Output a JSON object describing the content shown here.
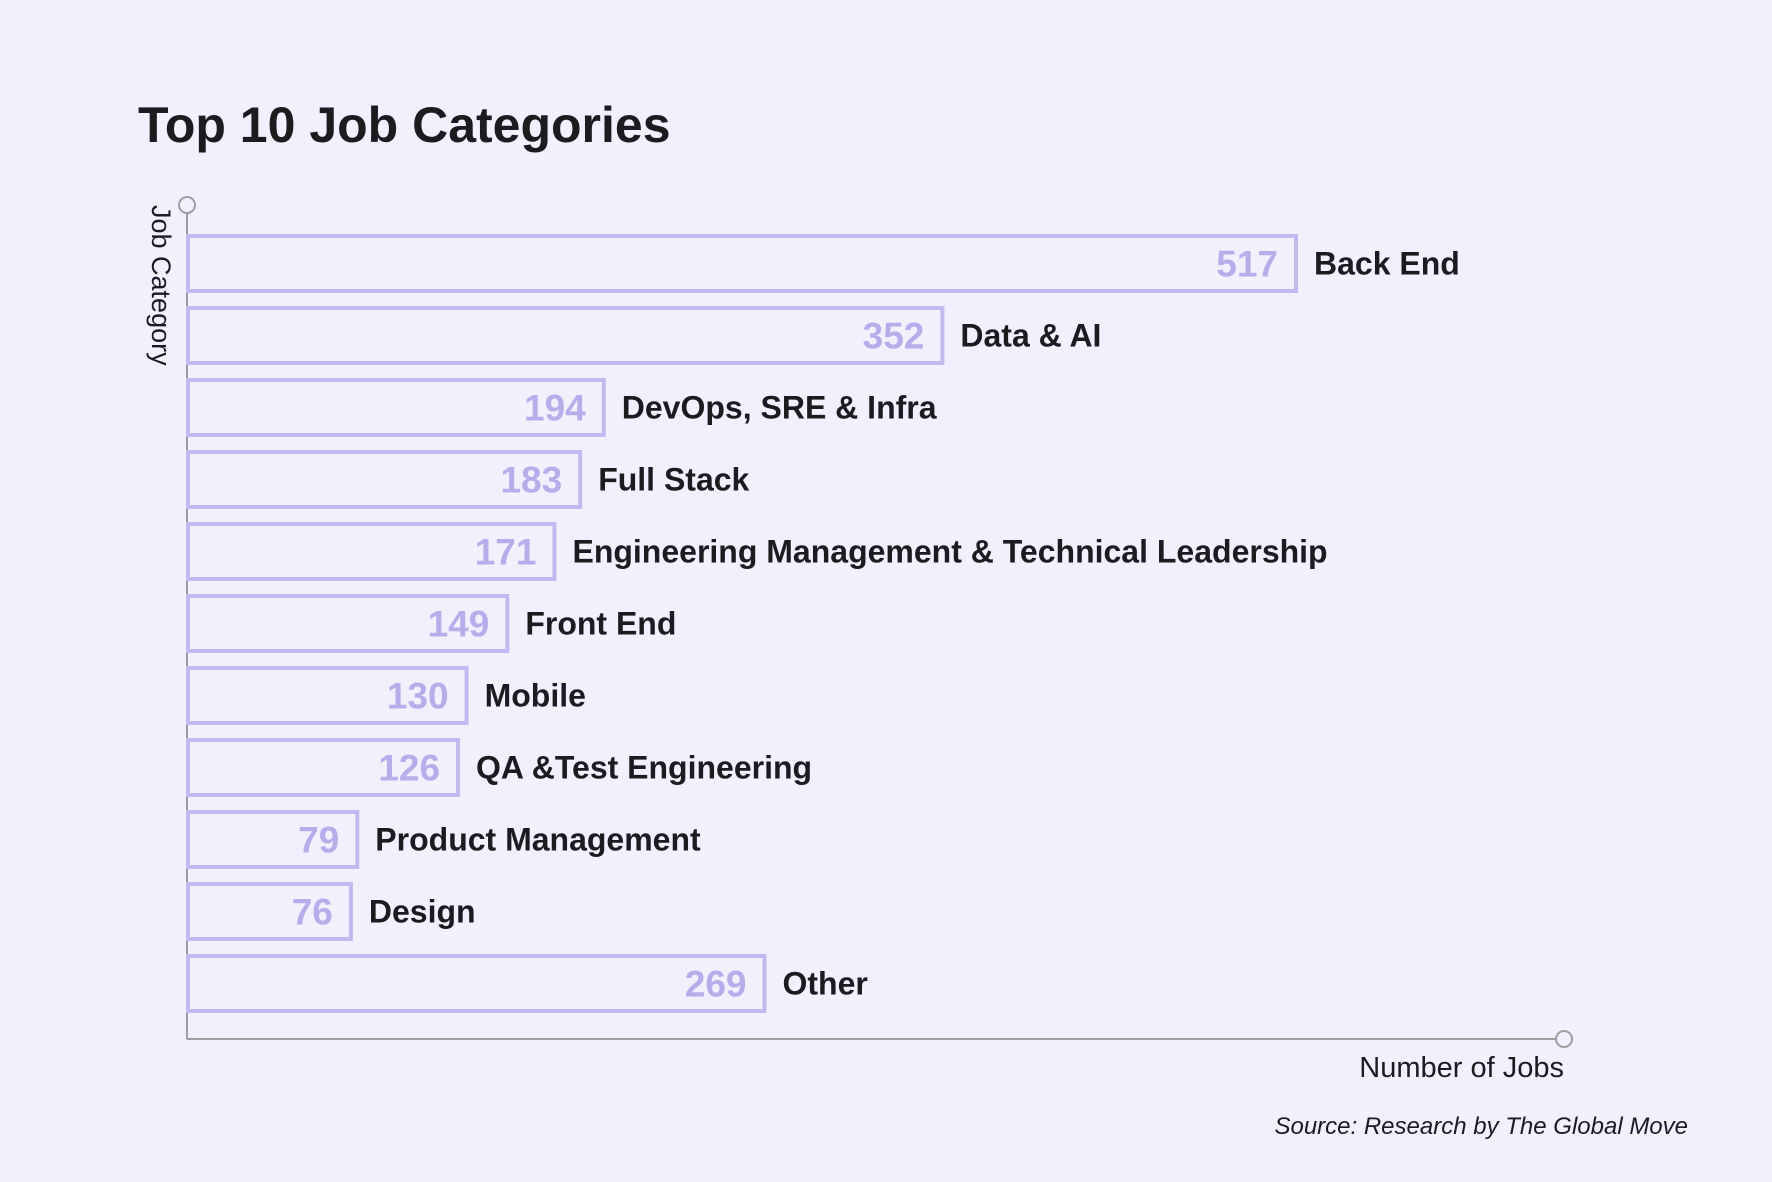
{
  "chart_data": {
    "type": "bar",
    "orientation": "horizontal",
    "title": "Top 10 Job Categories",
    "xlabel": "Number of Jobs",
    "ylabel": "Job Category",
    "source": "Source: Research by The Global Move",
    "categories": [
      "Back End",
      "Data & AI",
      "DevOps, SRE & Infra",
      "Full Stack",
      "Engineering Management & Technical Leadership",
      "Front End",
      "Mobile",
      "QA &Test Engineering",
      "Product Management",
      "Design",
      "Other"
    ],
    "values": [
      517,
      352,
      194,
      183,
      171,
      149,
      130,
      126,
      79,
      76,
      269
    ],
    "xlim": [
      0,
      645
    ],
    "grid": false,
    "legend": "none"
  },
  "colors": {
    "background": "#f3effd",
    "bar_stroke": "#c3b8ef",
    "value_text": "#b9aceb",
    "axis": "#9e9e9e",
    "text": "#1c1b1f"
  }
}
